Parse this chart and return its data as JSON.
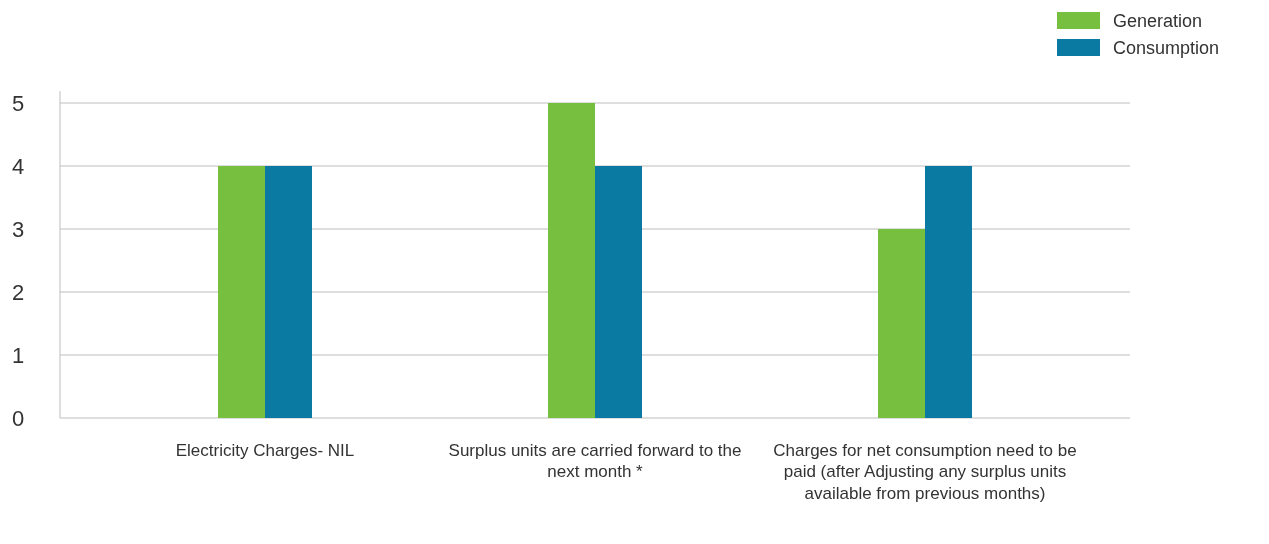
{
  "chart_data": {
    "type": "bar",
    "categories": [
      "Electricity Charges- NIL",
      "Surplus units are carried forward to the next month *",
      "Charges for net consumption need to be paid (after Adjusting any surplus units available from previous months)"
    ],
    "series": [
      {
        "name": "Generation",
        "color": "#77bf3f",
        "values": [
          4,
          5,
          3
        ]
      },
      {
        "name": "Consumption",
        "color": "#0b7aa3",
        "values": [
          4,
          4,
          4
        ]
      }
    ],
    "ylim": [
      0,
      5
    ],
    "yticks": [
      0,
      1,
      2,
      3,
      4,
      5
    ],
    "grid": "y",
    "legend": "top right"
  }
}
